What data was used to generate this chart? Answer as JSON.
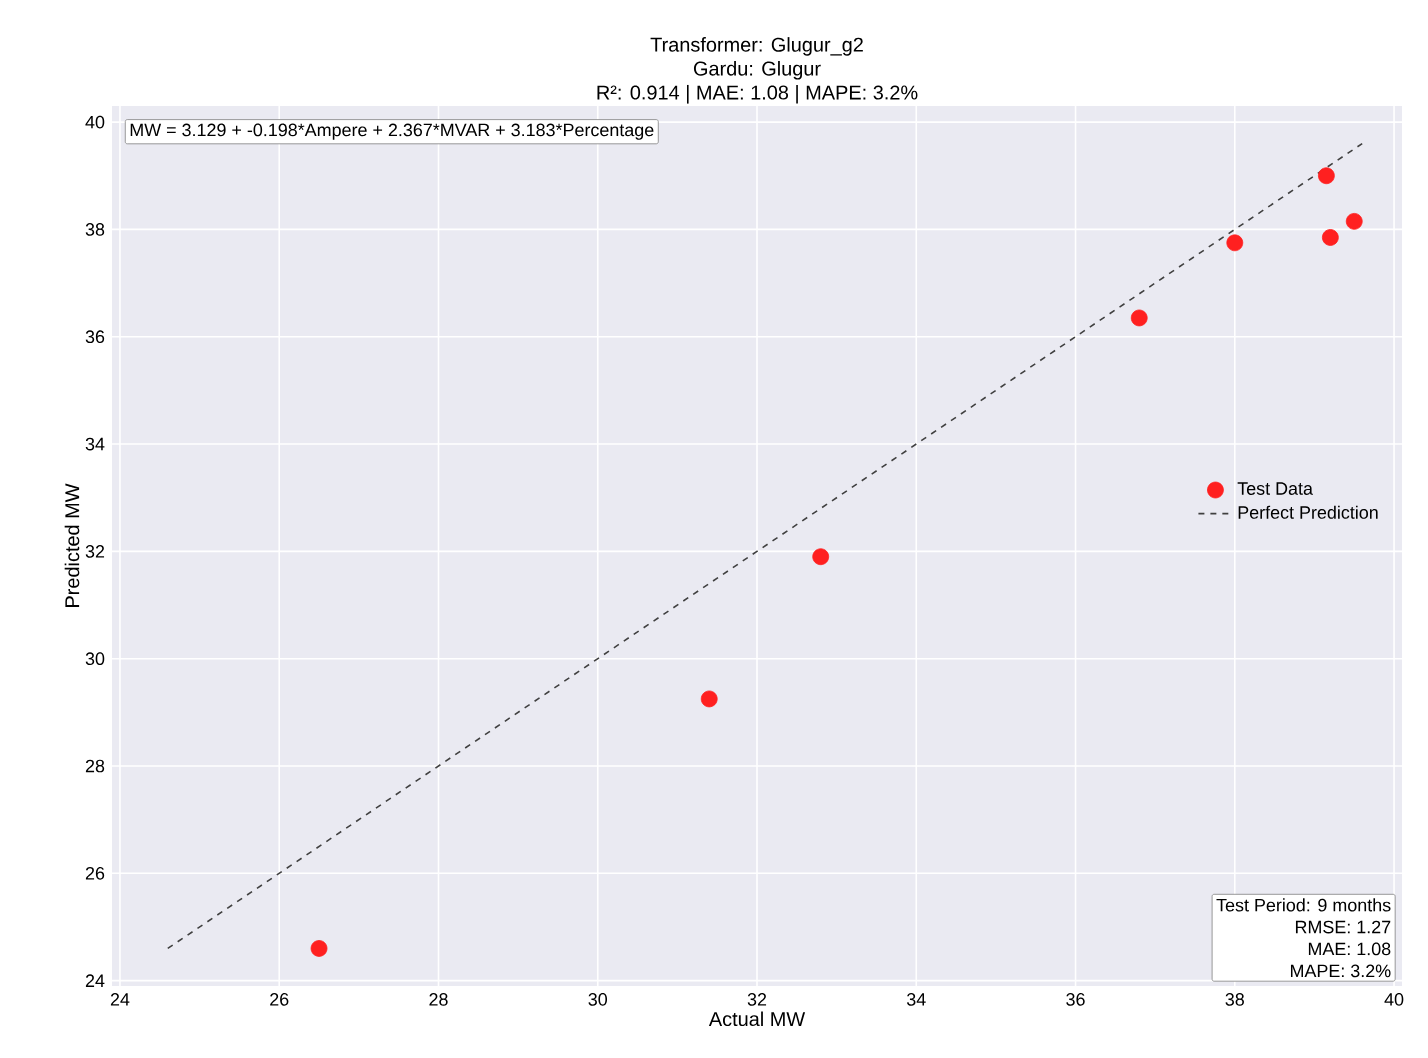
{
  "chart_data": {
    "type": "scatter",
    "title": "Transformer: Glugur_g2",
    "subtitle": "Gardu: Glugur",
    "xlabel": "Actual MW",
    "ylabel": "Predicted MW",
    "series": [
      {
        "name": "Test Data",
        "color": "#ff2020",
        "marker": "circle",
        "x": [
          26.5,
          31.4,
          32.8,
          36.8,
          38.0,
          39.15,
          39.2,
          39.5
        ],
        "values": [
          24.6,
          29.25,
          31.9,
          36.35,
          37.75,
          39.0,
          37.85,
          38.15
        ]
      },
      {
        "name": "Perfect Prediction",
        "type": "line",
        "color": "#404040",
        "line_style": "dashed",
        "marker": "none",
        "x": [
          24.6,
          39.6
        ],
        "values": [
          24.6,
          39.6
        ]
      }
    ],
    "annotations": [
      "R²: 0.914 | MAE: 1.08 | MAPE: 3.2%",
      "MW = 3.129 + -0.198*Ampere + 2.367*MVAR + 3.183*Percentage",
      "Test Period: 9 months",
      "RMSE: 1.27",
      "MAE: 1.08",
      "MAPE: 3.2%"
    ],
    "xlim": [
      23.9,
      40.1
    ],
    "ylim": [
      23.9,
      40.3
    ],
    "xticks": [
      24,
      26,
      28,
      30,
      32,
      34,
      36,
      38,
      40
    ],
    "yticks": [
      24,
      26,
      28,
      30,
      32,
      34,
      36,
      38,
      40
    ],
    "grid": true,
    "legend": "right"
  }
}
